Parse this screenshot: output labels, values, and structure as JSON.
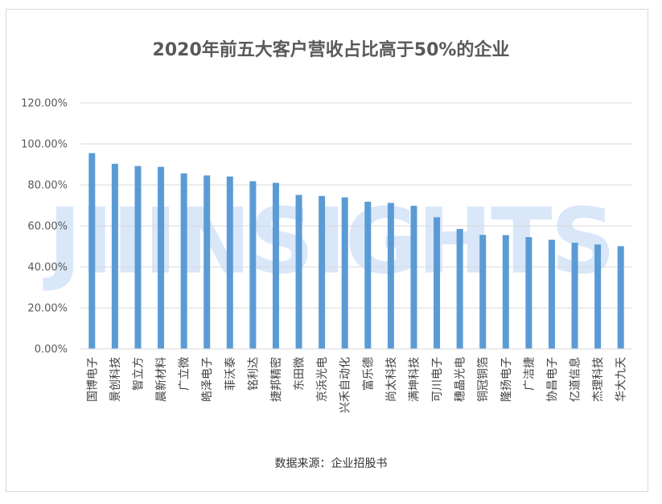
{
  "chart_data": {
    "type": "bar",
    "title": "2020年前五大客户营收占比高于50%的企业",
    "source": "数据来源：企业招股书",
    "watermark": "JIIINSIGHTS",
    "categories": [
      "国博电子",
      "景创科技",
      "智立方",
      "晨新材料",
      "广立微",
      "皓泽电子",
      "菲沃泰",
      "铭利达",
      "捷邦精密",
      "东田微",
      "京浜光电",
      "兴禾自动化",
      "富乐德",
      "尚太科技",
      "满坤科技",
      "可川电子",
      "穗晶光电",
      "铜冠铜箔",
      "隆扬电子",
      "广洁捷",
      "协昌电子",
      "亿道信息",
      "杰理科技",
      "华大九天"
    ],
    "values": [
      95.5,
      90.3,
      89.2,
      88.8,
      85.6,
      84.6,
      84.1,
      81.8,
      81.0,
      75.1,
      74.6,
      73.9,
      71.8,
      71.2,
      69.8,
      64.2,
      58.5,
      55.6,
      55.5,
      54.5,
      53.2,
      51.8,
      50.9,
      50.1
    ],
    "xlabel": "",
    "ylabel": "",
    "ylim": [
      0,
      120
    ],
    "y_ticks": [
      "0.00%",
      "20.00%",
      "40.00%",
      "60.00%",
      "80.00%",
      "100.00%",
      "120.00%"
    ],
    "grid": true,
    "legend": "none",
    "bar_color": "#5b9bd5",
    "grid_color": "#d9d9d9"
  }
}
